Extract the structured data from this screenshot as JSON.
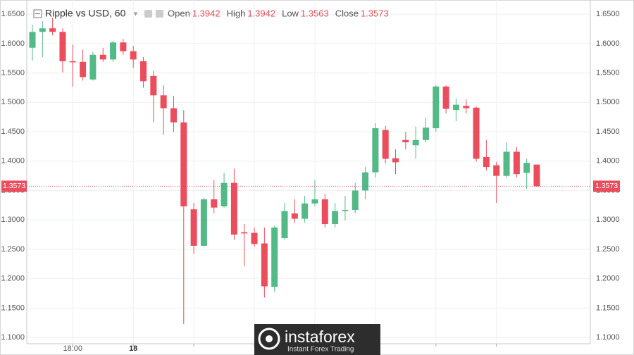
{
  "chart_data": {
    "type": "candlestick",
    "title": "Ripple vs USD, 60",
    "header_labels": [
      "Open",
      "High",
      "Low",
      "Close"
    ],
    "header_values": [
      "1.3942",
      "1.3942",
      "1.3563",
      "1.3573"
    ],
    "watermark": {
      "brand": "instaforex",
      "tagline": "Instant Forex Trading"
    },
    "categories": [
      null,
      null,
      null,
      null,
      "18:00",
      null,
      null,
      null,
      null,
      null,
      "18",
      null,
      null,
      null,
      null,
      null,
      null,
      null,
      null,
      null,
      null,
      null,
      null,
      null,
      null,
      null,
      null,
      null,
      null,
      null,
      null,
      null,
      null,
      null,
      null,
      null,
      null,
      null,
      null,
      null,
      null,
      null,
      null,
      null,
      null,
      null,
      null,
      null,
      null,
      null,
      null
    ],
    "open": [
      1.593,
      1.62,
      1.626,
      1.62,
      1.57,
      1.569,
      1.539,
      1.581,
      1.573,
      1.602,
      1.587,
      1.57,
      1.545,
      1.512,
      1.49,
      1.466,
      1.318,
      1.256,
      1.335,
      1.323,
      1.363,
      1.279,
      1.278,
      1.26,
      1.186,
      1.269,
      1.311,
      1.302,
      1.328,
      1.335,
      1.293,
      1.315,
      1.317,
      1.35,
      1.381,
      1.453,
      1.405,
      1.436,
      1.427,
      1.436,
      1.456,
      1.527,
      1.487,
      1.494,
      1.491,
      1.407,
      1.393,
      1.375,
      1.416,
      1.38,
      1.3942
    ],
    "high": [
      1.632,
      1.638,
      1.644,
      1.626,
      1.598,
      1.59,
      1.586,
      1.593,
      1.605,
      1.608,
      1.596,
      1.577,
      1.553,
      1.529,
      1.511,
      1.487,
      1.329,
      1.338,
      1.368,
      1.38,
      1.387,
      1.293,
      1.287,
      1.287,
      1.29,
      1.329,
      1.335,
      1.341,
      1.368,
      1.344,
      1.329,
      1.341,
      1.363,
      1.39,
      1.465,
      1.46,
      1.42,
      1.45,
      1.459,
      1.474,
      1.529,
      1.529,
      1.507,
      1.505,
      1.493,
      1.436,
      1.399,
      1.432,
      1.424,
      1.404,
      1.3942
    ],
    "low": [
      1.571,
      1.577,
      1.614,
      1.551,
      1.527,
      1.537,
      1.537,
      1.569,
      1.569,
      1.581,
      1.559,
      1.525,
      1.466,
      1.445,
      1.45,
      1.123,
      1.242,
      1.254,
      1.311,
      1.321,
      1.266,
      1.221,
      1.254,
      1.168,
      1.178,
      1.266,
      1.295,
      1.295,
      1.323,
      1.287,
      1.287,
      1.299,
      1.311,
      1.335,
      1.372,
      1.396,
      1.378,
      1.42,
      1.404,
      1.432,
      1.45,
      1.481,
      1.468,
      1.481,
      1.399,
      1.384,
      1.329,
      1.372,
      1.372,
      1.353,
      1.3563
    ],
    "close": [
      1.62,
      1.626,
      1.62,
      1.57,
      1.569,
      1.543,
      1.581,
      1.573,
      1.602,
      1.587,
      1.573,
      1.536,
      1.512,
      1.49,
      1.466,
      1.323,
      1.256,
      1.335,
      1.321,
      1.363,
      1.275,
      1.277,
      1.259,
      1.187,
      1.287,
      1.315,
      1.302,
      1.328,
      1.335,
      1.293,
      1.315,
      1.317,
      1.35,
      1.381,
      1.456,
      1.404,
      1.398,
      1.432,
      1.436,
      1.457,
      1.527,
      1.489,
      1.496,
      1.49,
      1.404,
      1.39,
      1.375,
      1.416,
      1.378,
      1.397,
      1.3573
    ],
    "up_color": "#53b987",
    "down_color": "#eb4d5c",
    "last_price": {
      "value": 1.3573,
      "label": "1.3573"
    },
    "ylim": [
      1.0893,
      1.6742
    ],
    "yticks": [
      {
        "value": 1.1,
        "label": "1.1000"
      },
      {
        "value": 1.15,
        "label": "1.1500"
      },
      {
        "value": 1.2,
        "label": "1.2000"
      },
      {
        "value": 1.25,
        "label": "1.2500"
      },
      {
        "value": 1.3,
        "label": "1.3000"
      },
      {
        "value": 1.35,
        "label": "1.3500"
      },
      {
        "value": 1.4,
        "label": "1.4000"
      },
      {
        "value": 1.45,
        "label": "1.4500"
      },
      {
        "value": 1.5,
        "label": "1.5000"
      },
      {
        "value": 1.55,
        "label": "1.5500"
      },
      {
        "value": 1.6,
        "label": "1.6000"
      },
      {
        "value": 1.65,
        "label": "1.6500"
      }
    ],
    "grid": true
  }
}
